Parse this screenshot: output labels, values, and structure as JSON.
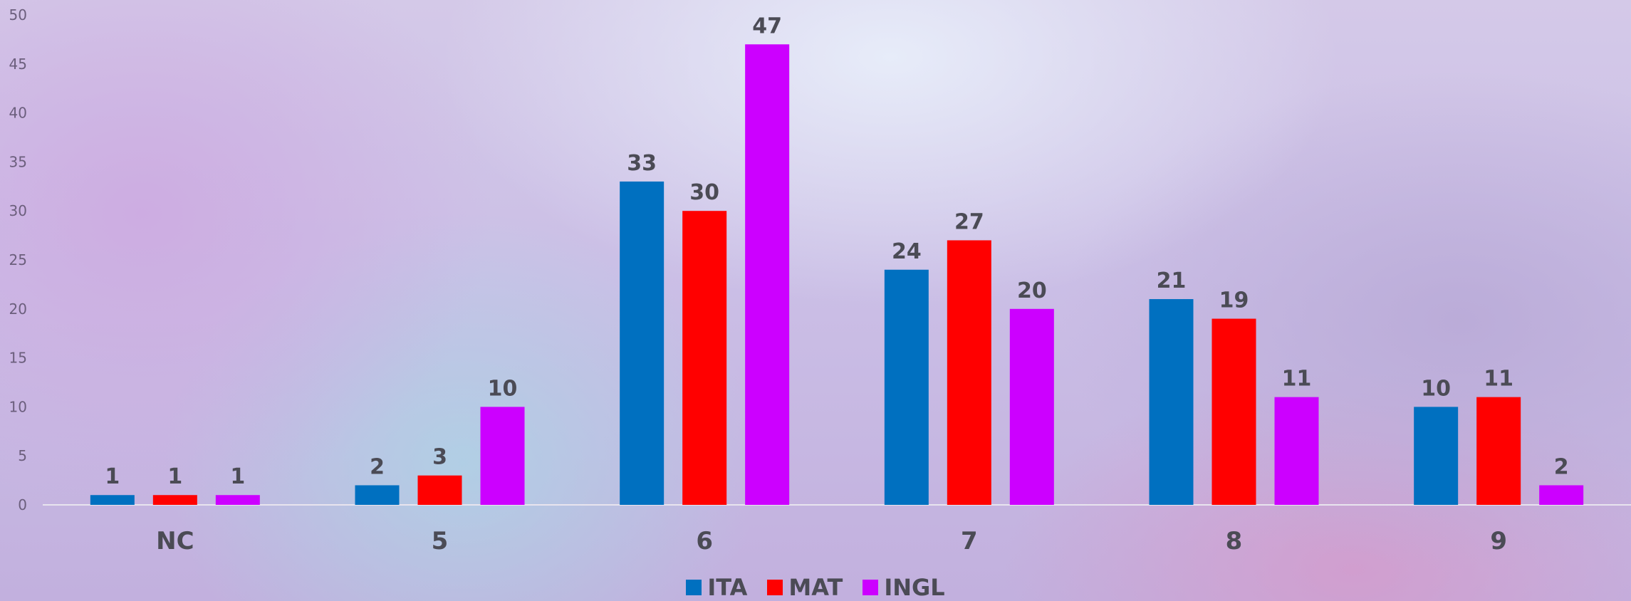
{
  "chart_data": {
    "type": "bar",
    "categories": [
      "NC",
      "5",
      "6",
      "7",
      "8",
      "9"
    ],
    "series": [
      {
        "name": "ITA",
        "color": "#0070c0",
        "values": [
          1,
          2,
          33,
          24,
          21,
          10
        ]
      },
      {
        "name": "MAT",
        "color": "#ff0000",
        "values": [
          1,
          3,
          30,
          27,
          19,
          11
        ]
      },
      {
        "name": "INGL",
        "color": "#cc00ff",
        "values": [
          1,
          10,
          47,
          20,
          11,
          2
        ]
      }
    ],
    "ylim": [
      0,
      50
    ],
    "yticks": [
      0,
      5,
      10,
      15,
      20,
      25,
      30,
      35,
      40,
      45,
      50
    ],
    "grid": false,
    "data_labels": true,
    "legend_position": "bottom"
  }
}
